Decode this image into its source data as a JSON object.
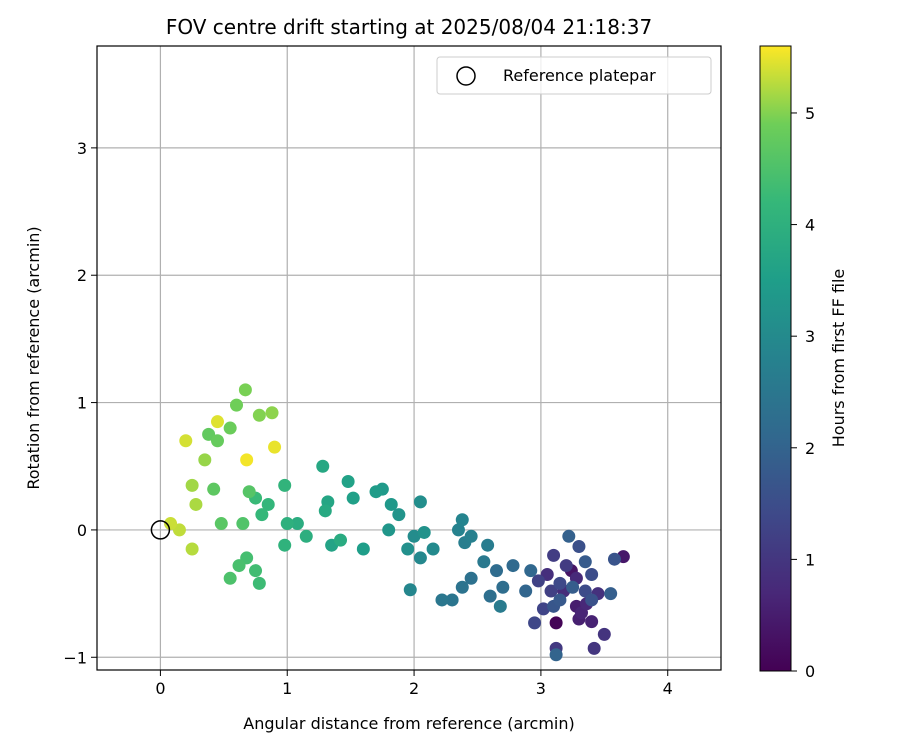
{
  "chart_data": {
    "type": "scatter",
    "title": "FOV centre drift starting at 2025/08/04 21:18:37",
    "xlabel": "Angular distance from reference (arcmin)",
    "ylabel": "Rotation from reference (arcmin)",
    "xlim": [
      -0.5,
      4.42
    ],
    "ylim": [
      -1.1,
      3.8
    ],
    "xticks": [
      0,
      1,
      2,
      3,
      4
    ],
    "yticks": [
      -1,
      0,
      1,
      2,
      3
    ],
    "grid": true,
    "colormap": "viridis",
    "colorbar": {
      "label": "Hours from first FF file",
      "min": 0,
      "max": 5.6,
      "ticks": [
        0,
        1,
        2,
        3,
        4,
        5
      ]
    },
    "legend": {
      "position": "top-right",
      "entries": [
        {
          "label": "Reference platepar",
          "marker": "open-circle"
        }
      ]
    },
    "reference_point": {
      "x": 0,
      "y": 0
    },
    "points": [
      {
        "x": 3.12,
        "y": -0.73,
        "c": 0.05
      },
      {
        "x": 3.24,
        "y": -0.32,
        "c": 0.35
      },
      {
        "x": 3.65,
        "y": -0.21,
        "c": 0.4
      },
      {
        "x": 3.28,
        "y": -0.6,
        "c": 0.5
      },
      {
        "x": 3.3,
        "y": -0.7,
        "c": 0.55
      },
      {
        "x": 3.4,
        "y": -0.72,
        "c": 0.6
      },
      {
        "x": 3.32,
        "y": -0.65,
        "c": 0.65
      },
      {
        "x": 3.36,
        "y": -0.58,
        "c": 0.7
      },
      {
        "x": 3.28,
        "y": -0.38,
        "c": 0.75
      },
      {
        "x": 3.18,
        "y": -0.48,
        "c": 0.8
      },
      {
        "x": 3.05,
        "y": -0.35,
        "c": 0.85
      },
      {
        "x": 3.45,
        "y": -0.5,
        "c": 0.9
      },
      {
        "x": 3.5,
        "y": -0.82,
        "c": 0.95
      },
      {
        "x": 3.42,
        "y": -0.93,
        "c": 1.0
      },
      {
        "x": 3.12,
        "y": -0.93,
        "c": 1.05
      },
      {
        "x": 3.2,
        "y": -0.28,
        "c": 1.1
      },
      {
        "x": 3.1,
        "y": -0.2,
        "c": 1.15
      },
      {
        "x": 3.08,
        "y": -0.48,
        "c": 1.2
      },
      {
        "x": 2.98,
        "y": -0.4,
        "c": 1.25
      },
      {
        "x": 3.02,
        "y": -0.62,
        "c": 1.3
      },
      {
        "x": 2.95,
        "y": -0.73,
        "c": 1.35
      },
      {
        "x": 3.15,
        "y": -0.42,
        "c": 1.4
      },
      {
        "x": 3.35,
        "y": -0.48,
        "c": 1.45
      },
      {
        "x": 3.4,
        "y": -0.35,
        "c": 1.5
      },
      {
        "x": 3.3,
        "y": -0.13,
        "c": 1.55
      },
      {
        "x": 3.4,
        "y": -0.55,
        "c": 1.6
      },
      {
        "x": 3.58,
        "y": -0.23,
        "c": 1.65
      },
      {
        "x": 3.1,
        "y": -0.6,
        "c": 1.7
      },
      {
        "x": 3.15,
        "y": -0.55,
        "c": 1.75
      },
      {
        "x": 3.35,
        "y": -0.25,
        "c": 1.8
      },
      {
        "x": 3.25,
        "y": -0.45,
        "c": 1.85
      },
      {
        "x": 3.55,
        "y": -0.5,
        "c": 1.9
      },
      {
        "x": 3.22,
        "y": -0.05,
        "c": 1.95
      },
      {
        "x": 3.12,
        "y": -0.98,
        "c": 2.0
      },
      {
        "x": 2.88,
        "y": -0.48,
        "c": 2.05
      },
      {
        "x": 2.92,
        "y": -0.32,
        "c": 2.1
      },
      {
        "x": 2.78,
        "y": -0.28,
        "c": 2.15
      },
      {
        "x": 2.65,
        "y": -0.32,
        "c": 2.2
      },
      {
        "x": 2.7,
        "y": -0.45,
        "c": 2.25
      },
      {
        "x": 2.6,
        "y": -0.52,
        "c": 2.3
      },
      {
        "x": 2.45,
        "y": -0.38,
        "c": 2.35
      },
      {
        "x": 2.38,
        "y": -0.45,
        "c": 2.4
      },
      {
        "x": 2.3,
        "y": -0.55,
        "c": 2.45
      },
      {
        "x": 2.22,
        "y": -0.55,
        "c": 2.5
      },
      {
        "x": 2.55,
        "y": -0.25,
        "c": 2.55
      },
      {
        "x": 2.68,
        "y": -0.6,
        "c": 2.6
      },
      {
        "x": 2.58,
        "y": -0.12,
        "c": 2.65
      },
      {
        "x": 2.4,
        "y": -0.1,
        "c": 2.7
      },
      {
        "x": 2.45,
        "y": -0.05,
        "c": 2.75
      },
      {
        "x": 2.35,
        "y": 0.0,
        "c": 2.8
      },
      {
        "x": 2.38,
        "y": 0.08,
        "c": 2.85
      },
      {
        "x": 1.97,
        "y": -0.47,
        "c": 2.9
      },
      {
        "x": 2.05,
        "y": -0.22,
        "c": 2.95
      },
      {
        "x": 2.15,
        "y": -0.15,
        "c": 3.0
      },
      {
        "x": 2.0,
        "y": -0.05,
        "c": 3.05
      },
      {
        "x": 2.05,
        "y": 0.22,
        "c": 3.1
      },
      {
        "x": 1.95,
        "y": -0.15,
        "c": 3.15
      },
      {
        "x": 2.08,
        "y": -0.02,
        "c": 3.2
      },
      {
        "x": 1.88,
        "y": 0.12,
        "c": 3.25
      },
      {
        "x": 1.8,
        "y": 0.0,
        "c": 3.3
      },
      {
        "x": 1.82,
        "y": 0.2,
        "c": 3.35
      },
      {
        "x": 1.75,
        "y": 0.32,
        "c": 3.4
      },
      {
        "x": 1.7,
        "y": 0.3,
        "c": 3.45
      },
      {
        "x": 1.6,
        "y": -0.15,
        "c": 3.5
      },
      {
        "x": 1.52,
        "y": 0.25,
        "c": 3.55
      },
      {
        "x": 1.48,
        "y": 0.38,
        "c": 3.6
      },
      {
        "x": 1.35,
        "y": -0.12,
        "c": 3.65
      },
      {
        "x": 1.32,
        "y": 0.22,
        "c": 3.7
      },
      {
        "x": 1.28,
        "y": 0.5,
        "c": 3.75
      },
      {
        "x": 1.3,
        "y": 0.15,
        "c": 3.8
      },
      {
        "x": 1.42,
        "y": -0.08,
        "c": 3.85
      },
      {
        "x": 1.08,
        "y": 0.05,
        "c": 3.9
      },
      {
        "x": 1.15,
        "y": -0.05,
        "c": 3.95
      },
      {
        "x": 1.0,
        "y": 0.05,
        "c": 4.0
      },
      {
        "x": 0.98,
        "y": -0.12,
        "c": 4.05
      },
      {
        "x": 0.98,
        "y": 0.35,
        "c": 4.1
      },
      {
        "x": 0.85,
        "y": 0.2,
        "c": 4.15
      },
      {
        "x": 0.8,
        "y": 0.12,
        "c": 4.2
      },
      {
        "x": 0.75,
        "y": 0.25,
        "c": 4.25
      },
      {
        "x": 0.78,
        "y": -0.42,
        "c": 4.3
      },
      {
        "x": 0.75,
        "y": -0.32,
        "c": 4.35
      },
      {
        "x": 0.68,
        "y": -0.22,
        "c": 4.4
      },
      {
        "x": 0.62,
        "y": -0.28,
        "c": 4.45
      },
      {
        "x": 0.55,
        "y": -0.38,
        "c": 4.5
      },
      {
        "x": 0.65,
        "y": 0.05,
        "c": 4.55
      },
      {
        "x": 0.7,
        "y": 0.3,
        "c": 4.6
      },
      {
        "x": 0.48,
        "y": 0.05,
        "c": 4.65
      },
      {
        "x": 0.42,
        "y": 0.32,
        "c": 4.7
      },
      {
        "x": 0.38,
        "y": 0.75,
        "c": 4.75
      },
      {
        "x": 0.45,
        "y": 0.7,
        "c": 4.8
      },
      {
        "x": 0.55,
        "y": 0.8,
        "c": 4.85
      },
      {
        "x": 0.6,
        "y": 0.98,
        "c": 4.9
      },
      {
        "x": 0.67,
        "y": 1.1,
        "c": 4.95
      },
      {
        "x": 0.78,
        "y": 0.9,
        "c": 5.0
      },
      {
        "x": 0.88,
        "y": 0.92,
        "c": 5.05
      },
      {
        "x": 0.35,
        "y": 0.55,
        "c": 5.1
      },
      {
        "x": 0.25,
        "y": 0.35,
        "c": 5.15
      },
      {
        "x": 0.28,
        "y": 0.2,
        "c": 5.2
      },
      {
        "x": 0.25,
        "y": -0.15,
        "c": 5.25
      },
      {
        "x": 0.15,
        "y": 0.0,
        "c": 5.3
      },
      {
        "x": 0.08,
        "y": 0.05,
        "c": 5.35
      },
      {
        "x": 0.2,
        "y": 0.7,
        "c": 5.4
      },
      {
        "x": 0.45,
        "y": 0.85,
        "c": 5.45
      },
      {
        "x": 0.9,
        "y": 0.65,
        "c": 5.5
      },
      {
        "x": 0.68,
        "y": 0.55,
        "c": 5.55
      }
    ]
  }
}
